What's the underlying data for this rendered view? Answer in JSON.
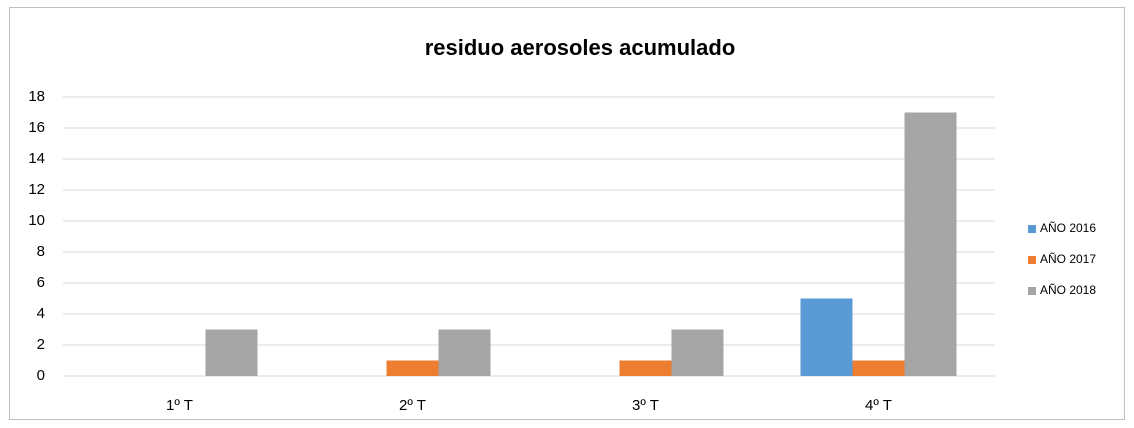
{
  "chart_data": {
    "type": "bar",
    "title": "residuo aerosoles acumulado",
    "categories": [
      "1º T",
      "2º T",
      "3º T",
      "4º T"
    ],
    "series": [
      {
        "name": "AÑO 2016",
        "color": "#5b9bd5",
        "values": [
          0,
          0,
          0,
          5
        ]
      },
      {
        "name": "AÑO 2017",
        "color": "#ed7d31",
        "values": [
          0,
          1,
          1,
          1
        ]
      },
      {
        "name": "AÑO 2018",
        "color": "#a5a5a5",
        "values": [
          3,
          3,
          3,
          17
        ]
      }
    ],
    "ylim": [
      0,
      18
    ],
    "yticks": [
      0,
      2,
      4,
      6,
      8,
      10,
      12,
      14,
      16,
      18
    ],
    "grid": true,
    "legend": "right"
  }
}
